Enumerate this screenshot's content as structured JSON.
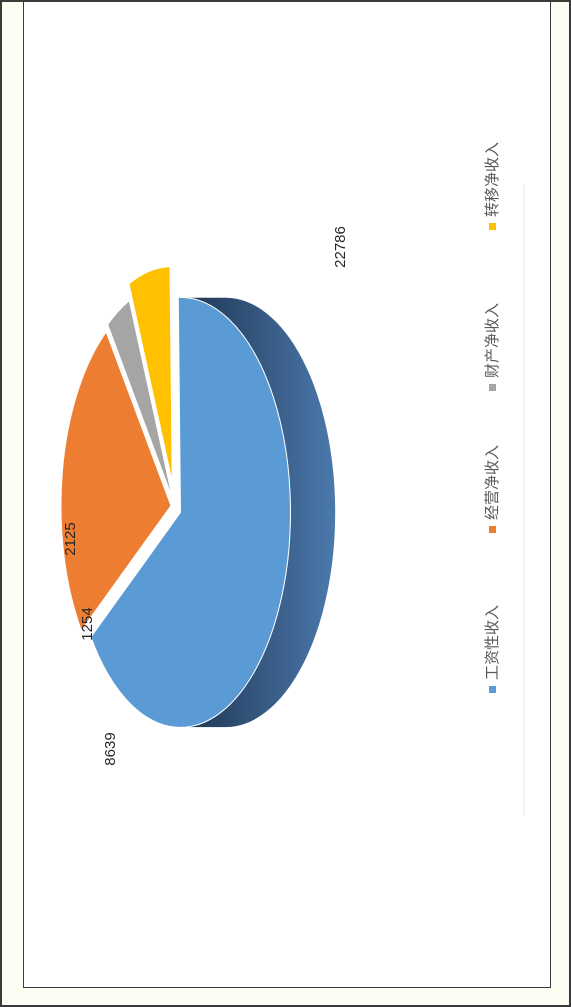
{
  "chart_data": {
    "type": "pie",
    "categories": [
      "工资性收入",
      "经营净收入",
      "财产净收入",
      "转移净收入"
    ],
    "values": [
      22786,
      8639,
      1254,
      2125
    ],
    "value_labels": [
      "22786",
      "8639",
      "1254",
      "2125"
    ],
    "colors": [
      "#5b9bd5",
      "#ed7d31",
      "#a5a5a5",
      "#ffc000"
    ],
    "exploded": true,
    "three_d": true,
    "legend_position": "bottom",
    "orientation": "rotated-90"
  }
}
